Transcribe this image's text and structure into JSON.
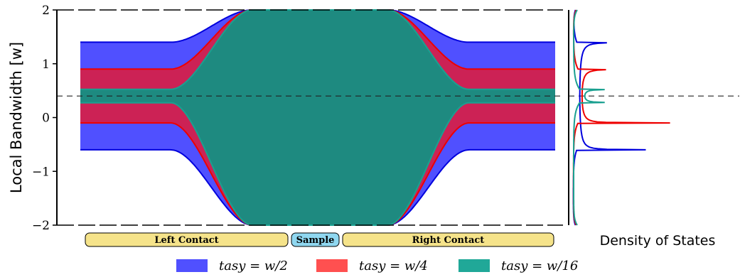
{
  "chart_data": [
    {
      "type": "area",
      "ylabel": "Local Bandwidth [w]",
      "ylim": [
        -2,
        2
      ],
      "yticks": [
        -2,
        -1,
        0,
        1,
        2
      ],
      "ytick_labels": [
        "−2",
        "−1",
        "0",
        "1",
        "2"
      ],
      "reference_line_y": 0.4,
      "regions": [
        {
          "label": "Left Contact",
          "color": "#f5e38a"
        },
        {
          "label": "Sample",
          "color": "#8fd7f0"
        },
        {
          "label": "Right Contact",
          "color": "#f5e38a"
        }
      ],
      "series": [
        {
          "name": "t_asy = w/2",
          "legend": "tasy = w/2",
          "color": "#5050ff",
          "edge": "#0000dd",
          "contact_band": [
            -0.6,
            1.4
          ],
          "sample_band": [
            -2,
            2
          ]
        },
        {
          "name": "t_asy = w/4",
          "legend": "tasy = w/4",
          "color": "#cc2255",
          "edge": "#ee0000",
          "contact_band": [
            -0.1,
            0.9
          ],
          "sample_band": [
            -2,
            2
          ]
        },
        {
          "name": "t_asy = w/16",
          "legend": "tasy = w/16",
          "color": "#1e8a80",
          "edge": "#1aa090",
          "contact_band": [
            0.275,
            0.525
          ],
          "sample_band": [
            -2,
            2
          ]
        }
      ],
      "legend_colors": [
        "#5050ff",
        "#ff5050",
        "#20a898"
      ],
      "legend_placement": "bottom",
      "grid": false
    },
    {
      "type": "line",
      "xlabel": "Density of States",
      "ylim": [
        -2,
        2
      ],
      "reference_line_y": 0.4,
      "series": [
        {
          "name": "t_asy = w/2",
          "color": "#0000dd",
          "peaks_y": [
            -0.6,
            1.4
          ]
        },
        {
          "name": "t_asy = w/4",
          "color": "#ee0000",
          "peaks_y": [
            -0.1,
            0.9
          ]
        },
        {
          "name": "t_asy = w/16",
          "color": "#1aa090",
          "peaks_y": [
            0.275,
            0.525
          ]
        }
      ]
    }
  ]
}
